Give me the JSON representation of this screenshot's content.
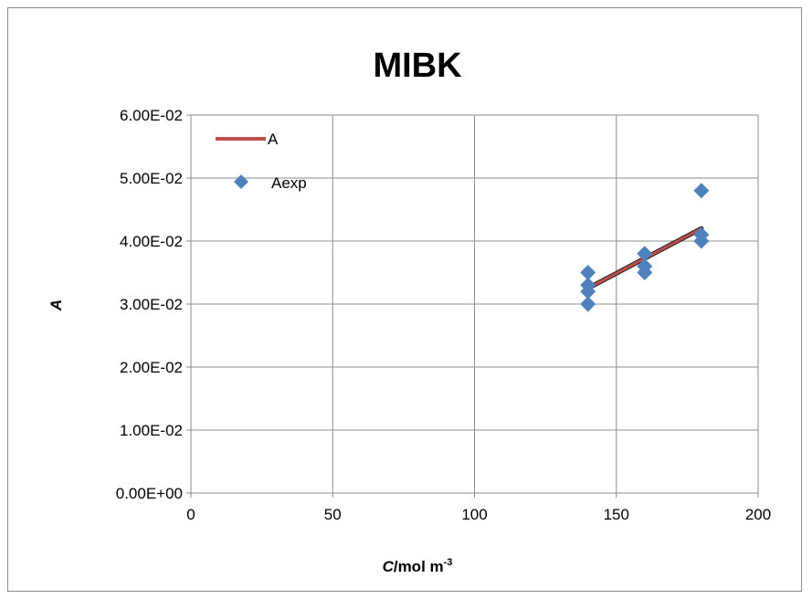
{
  "chart_data": {
    "type": "scatter",
    "title": "MIBK",
    "xlabel": {
      "main": "C",
      "unit": "/mol m",
      "exp": "-3"
    },
    "ylabel": "A",
    "xlim": [
      0,
      200
    ],
    "ylim": [
      0,
      0.06
    ],
    "x_ticks": [
      0,
      50,
      100,
      150,
      200
    ],
    "x_tick_labels": [
      "0",
      "50",
      "100",
      "150",
      "200"
    ],
    "y_ticks": [
      0,
      0.01,
      0.02,
      0.03,
      0.04,
      0.05,
      0.06
    ],
    "y_tick_labels": [
      "0.00E+00",
      "1.00E-02",
      "2.00E-02",
      "3.00E-02",
      "4.00E-02",
      "5.00E-02",
      "6.00E-02"
    ],
    "grid": true,
    "legend_position": "top-left",
    "series": [
      {
        "name": "A",
        "kind": "line",
        "color": "#c0504d",
        "x": [
          140,
          180
        ],
        "y": [
          0.0325,
          0.042
        ]
      },
      {
        "name": "Aexp",
        "kind": "marker",
        "marker": "diamond",
        "color": "#4f81bd",
        "x": [
          140,
          140,
          140,
          140,
          160,
          160,
          160,
          180,
          180,
          180
        ],
        "y": [
          0.035,
          0.033,
          0.032,
          0.03,
          0.038,
          0.036,
          0.035,
          0.048,
          0.041,
          0.04
        ]
      }
    ]
  }
}
